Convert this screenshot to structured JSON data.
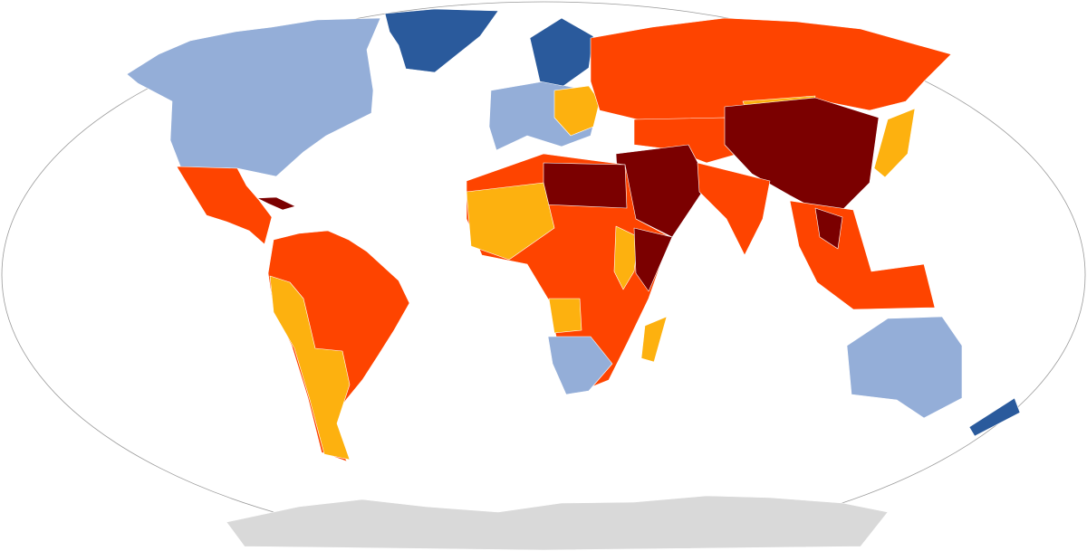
{
  "map": {
    "palette": [
      "#2a5a9c",
      "#94aed8",
      "#fdb10f",
      "#fe4400",
      "#7b0000",
      "#d9d9d9"
    ]
  }
}
